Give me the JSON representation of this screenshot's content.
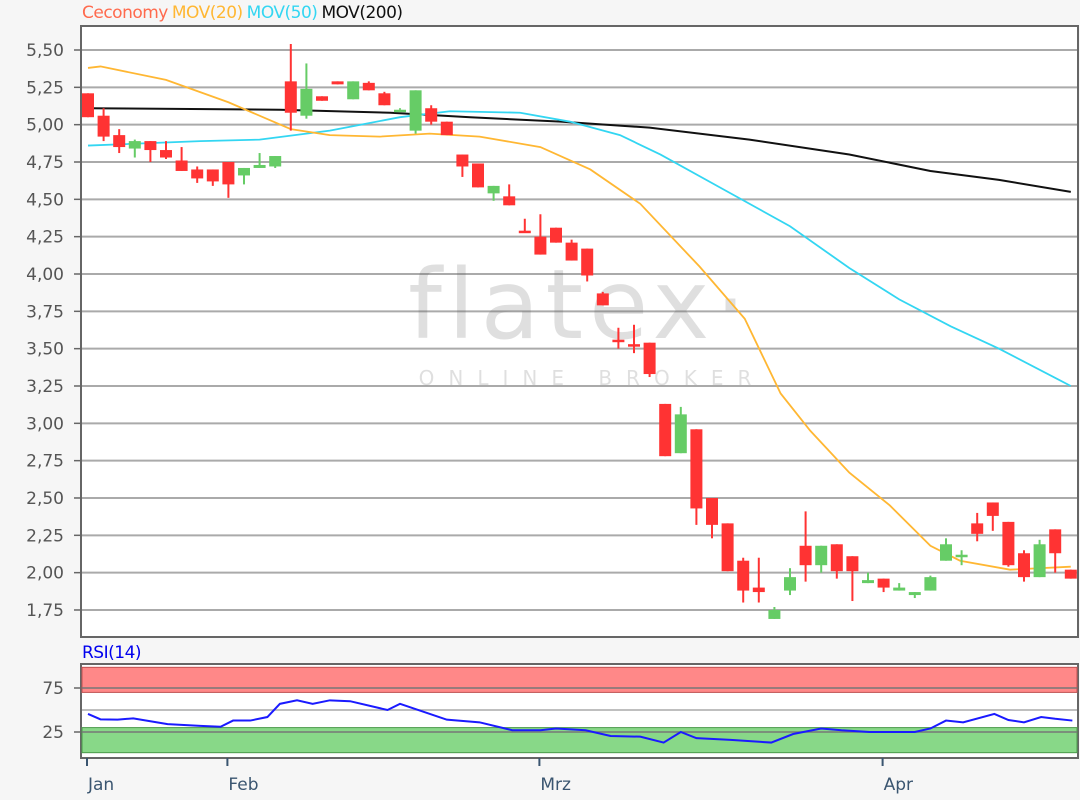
{
  "legend": {
    "instrument": "Ceconomy",
    "ma20": "MOV(20)",
    "ma50": "MOV(50)",
    "ma200": "MOV(200)"
  },
  "watermark": {
    "logo": "flatex",
    "tagline": "ONLINE BROKER"
  },
  "colors": {
    "instrument": "#ff6a4d",
    "ma20": "#ffb733",
    "ma50": "#33d6f2",
    "ma200": "#111111",
    "up": "#66cc66",
    "down": "#ff3333",
    "rsi": "#1a1aff",
    "overbought_zone": "#ff8888",
    "oversold_zone": "#88d888"
  },
  "chart_data": [
    {
      "type": "candlestick",
      "title": "",
      "ylim": [
        1.6,
        5.65
      ],
      "y_ticks": [
        "5,50",
        "5,25",
        "5,00",
        "4,75",
        "4,50",
        "4,25",
        "4,00",
        "3,75",
        "3,50",
        "3,25",
        "3,00",
        "2,75",
        "2,50",
        "2,25",
        "2,00",
        "1,75"
      ],
      "y_tick_values": [
        5.5,
        5.25,
        5.0,
        4.75,
        4.5,
        4.25,
        4.0,
        3.75,
        3.5,
        3.25,
        3.0,
        2.75,
        2.5,
        2.25,
        2.0,
        1.75
      ],
      "grid": true,
      "x_ticks": [
        {
          "label": "Jan",
          "index": 0
        },
        {
          "label": "Feb",
          "index": 9
        },
        {
          "label": "Mrz",
          "index": 29
        },
        {
          "label": "Apr",
          "index": 51
        }
      ],
      "ohlc_fields": [
        "open",
        "high",
        "low",
        "close"
      ],
      "candles": [
        [
          5.21,
          5.21,
          5.05,
          5.05
        ],
        [
          5.06,
          5.11,
          4.89,
          4.92
        ],
        [
          4.93,
          4.97,
          4.81,
          4.85
        ],
        [
          4.84,
          4.9,
          4.78,
          4.89
        ],
        [
          4.89,
          4.89,
          4.75,
          4.83
        ],
        [
          4.83,
          4.89,
          4.77,
          4.78
        ],
        [
          4.76,
          4.85,
          4.69,
          4.69
        ],
        [
          4.7,
          4.72,
          4.61,
          4.64
        ],
        [
          4.7,
          4.7,
          4.59,
          4.62
        ],
        [
          4.75,
          4.75,
          4.51,
          4.6
        ],
        [
          4.66,
          4.71,
          4.6,
          4.71
        ],
        [
          4.71,
          4.81,
          4.71,
          4.73
        ],
        [
          4.72,
          4.79,
          4.71,
          4.79
        ],
        [
          5.29,
          5.54,
          4.96,
          5.08
        ],
        [
          5.06,
          5.41,
          5.04,
          5.24
        ],
        [
          5.19,
          5.19,
          5.16,
          5.16
        ],
        [
          5.29,
          5.29,
          5.27,
          5.27
        ],
        [
          5.17,
          5.29,
          5.17,
          5.29
        ],
        [
          5.28,
          5.29,
          5.23,
          5.23
        ],
        [
          5.21,
          5.22,
          5.13,
          5.13
        ],
        [
          5.1,
          5.11,
          5.1,
          5.1
        ],
        [
          4.96,
          5.23,
          4.94,
          5.23
        ],
        [
          5.11,
          5.13,
          5.0,
          5.02
        ],
        [
          5.02,
          5.02,
          4.93,
          4.93
        ],
        [
          4.8,
          4.8,
          4.65,
          4.72
        ],
        [
          4.74,
          4.74,
          4.58,
          4.58
        ],
        [
          4.54,
          4.59,
          4.49,
          4.59
        ],
        [
          4.52,
          4.6,
          4.46,
          4.46
        ],
        [
          4.29,
          4.37,
          4.28,
          4.28
        ],
        [
          4.25,
          4.4,
          4.13,
          4.13
        ],
        [
          4.31,
          4.31,
          4.21,
          4.21
        ],
        [
          4.21,
          4.23,
          4.09,
          4.09
        ],
        [
          4.17,
          4.17,
          3.95,
          3.99
        ],
        [
          3.87,
          3.88,
          3.79,
          3.79
        ],
        [
          3.56,
          3.64,
          3.5,
          3.55
        ],
        [
          3.53,
          3.66,
          3.47,
          3.52
        ],
        [
          3.54,
          3.54,
          3.31,
          3.33
        ],
        [
          3.13,
          3.13,
          2.78,
          2.78
        ],
        [
          2.8,
          3.11,
          2.8,
          3.06
        ],
        [
          2.96,
          2.96,
          2.32,
          2.43
        ],
        [
          2.5,
          2.5,
          2.23,
          2.32
        ],
        [
          2.33,
          2.33,
          2.01,
          2.01
        ],
        [
          2.08,
          2.1,
          1.8,
          1.88
        ],
        [
          1.9,
          2.1,
          1.8,
          1.87
        ],
        [
          1.69,
          1.77,
          1.69,
          1.75
        ],
        [
          1.88,
          2.03,
          1.85,
          1.97
        ],
        [
          2.18,
          2.41,
          1.94,
          2.05
        ],
        [
          2.05,
          2.18,
          2.0,
          2.18
        ],
        [
          2.19,
          2.19,
          1.96,
          2.01
        ],
        [
          2.11,
          2.11,
          1.81,
          2.01
        ],
        [
          1.93,
          2.0,
          1.93,
          1.95
        ],
        [
          1.96,
          1.96,
          1.87,
          1.9
        ],
        [
          1.88,
          1.93,
          1.88,
          1.9
        ],
        [
          1.85,
          1.87,
          1.83,
          1.87
        ],
        [
          1.88,
          1.98,
          1.88,
          1.97
        ],
        [
          2.08,
          2.23,
          2.08,
          2.19
        ],
        [
          2.11,
          2.15,
          2.05,
          2.12
        ],
        [
          2.33,
          2.4,
          2.21,
          2.26
        ],
        [
          2.47,
          2.47,
          2.28,
          2.38
        ],
        [
          2.34,
          2.34,
          2.04,
          2.05
        ],
        [
          2.13,
          2.15,
          1.94,
          1.97
        ],
        [
          1.97,
          2.22,
          1.97,
          2.19
        ],
        [
          2.29,
          2.29,
          2.0,
          2.13
        ],
        [
          2.02,
          2.02,
          1.96,
          1.96
        ]
      ],
      "series": [
        {
          "name": "MOV(20)",
          "type": "line",
          "points": [
            [
              0,
              5.38
            ],
            [
              0.8,
              5.39
            ],
            [
              5,
              5.3
            ],
            [
              9,
              5.15
            ],
            [
              13,
              4.97
            ],
            [
              15.5,
              4.93
            ],
            [
              18.7,
              4.92
            ],
            [
              21.9,
              4.94
            ],
            [
              25.1,
              4.92
            ],
            [
              29,
              4.85
            ],
            [
              32.2,
              4.7
            ],
            [
              35.4,
              4.47
            ],
            [
              39.2,
              4.05
            ],
            [
              42.1,
              3.7
            ],
            [
              44.4,
              3.2
            ],
            [
              46.3,
              2.95
            ],
            [
              48.8,
              2.67
            ],
            [
              51.4,
              2.45
            ],
            [
              54,
              2.18
            ],
            [
              55.9,
              2.08
            ],
            [
              59.1,
              2.02
            ],
            [
              63,
              2.04
            ]
          ]
        },
        {
          "name": "MOV(50)",
          "type": "line",
          "points": [
            [
              0,
              4.86
            ],
            [
              7.2,
              4.89
            ],
            [
              11,
              4.9
            ],
            [
              15.5,
              4.96
            ],
            [
              20,
              5.05
            ],
            [
              23.2,
              5.09
            ],
            [
              27.7,
              5.08
            ],
            [
              30.9,
              5.02
            ],
            [
              34.1,
              4.93
            ],
            [
              36.7,
              4.8
            ],
            [
              40.5,
              4.58
            ],
            [
              45,
              4.32
            ],
            [
              48.8,
              4.04
            ],
            [
              52,
              3.83
            ],
            [
              55.3,
              3.65
            ],
            [
              58.4,
              3.5
            ],
            [
              63,
              3.25
            ]
          ]
        },
        {
          "name": "MOV(200)",
          "type": "line",
          "points": [
            [
              0,
              5.11
            ],
            [
              12.3,
              5.1
            ],
            [
              19.4,
              5.08
            ],
            [
              24.5,
              5.05
            ],
            [
              30.3,
              5.02
            ],
            [
              36,
              4.98
            ],
            [
              42.4,
              4.9
            ],
            [
              48.8,
              4.8
            ],
            [
              54,
              4.69
            ],
            [
              58.4,
              4.63
            ],
            [
              63,
              4.55
            ]
          ]
        }
      ]
    },
    {
      "type": "line",
      "title": "RSI(14)",
      "ylim": [
        0,
        100
      ],
      "y_ticks": [
        "75",
        "25"
      ],
      "y_tick_values": [
        75,
        25
      ],
      "bands": [
        {
          "from": 70,
          "to": 100,
          "zone": "overbought"
        },
        {
          "from": 0,
          "to": 30,
          "zone": "oversold"
        }
      ],
      "gridlines": [
        50
      ],
      "series": [
        {
          "name": "RSI(14)",
          "points": [
            [
              0,
              45.5
            ],
            [
              0.8,
              39.4
            ],
            [
              1.9,
              39
            ],
            [
              2.9,
              40.5
            ],
            [
              5.1,
              34
            ],
            [
              7.2,
              32
            ],
            [
              8.5,
              31
            ],
            [
              9.3,
              38
            ],
            [
              10.4,
              38
            ],
            [
              11.5,
              42
            ],
            [
              12.3,
              57
            ],
            [
              13.4,
              61
            ],
            [
              14.4,
              57
            ],
            [
              15.5,
              61
            ],
            [
              16.8,
              60
            ],
            [
              19.2,
              50
            ],
            [
              20,
              57
            ],
            [
              23,
              39
            ],
            [
              25.1,
              36
            ],
            [
              27.2,
              27
            ],
            [
              29,
              27
            ],
            [
              30,
              29
            ],
            [
              31.9,
              27
            ],
            [
              33.5,
              20.5
            ],
            [
              35.4,
              19.7
            ],
            [
              36.9,
              13
            ],
            [
              38,
              25
            ],
            [
              39,
              18
            ],
            [
              41.2,
              16
            ],
            [
              43.8,
              13
            ],
            [
              45.2,
              22.7
            ],
            [
              47,
              29
            ],
            [
              48.3,
              27
            ],
            [
              50.1,
              25
            ],
            [
              53,
              25
            ],
            [
              54,
              29
            ],
            [
              55,
              38
            ],
            [
              56.1,
              36
            ],
            [
              58.1,
              45.5
            ],
            [
              59,
              38.6
            ],
            [
              60,
              36
            ],
            [
              61.1,
              42
            ],
            [
              62,
              40
            ],
            [
              63.1,
              38
            ]
          ]
        }
      ]
    }
  ]
}
